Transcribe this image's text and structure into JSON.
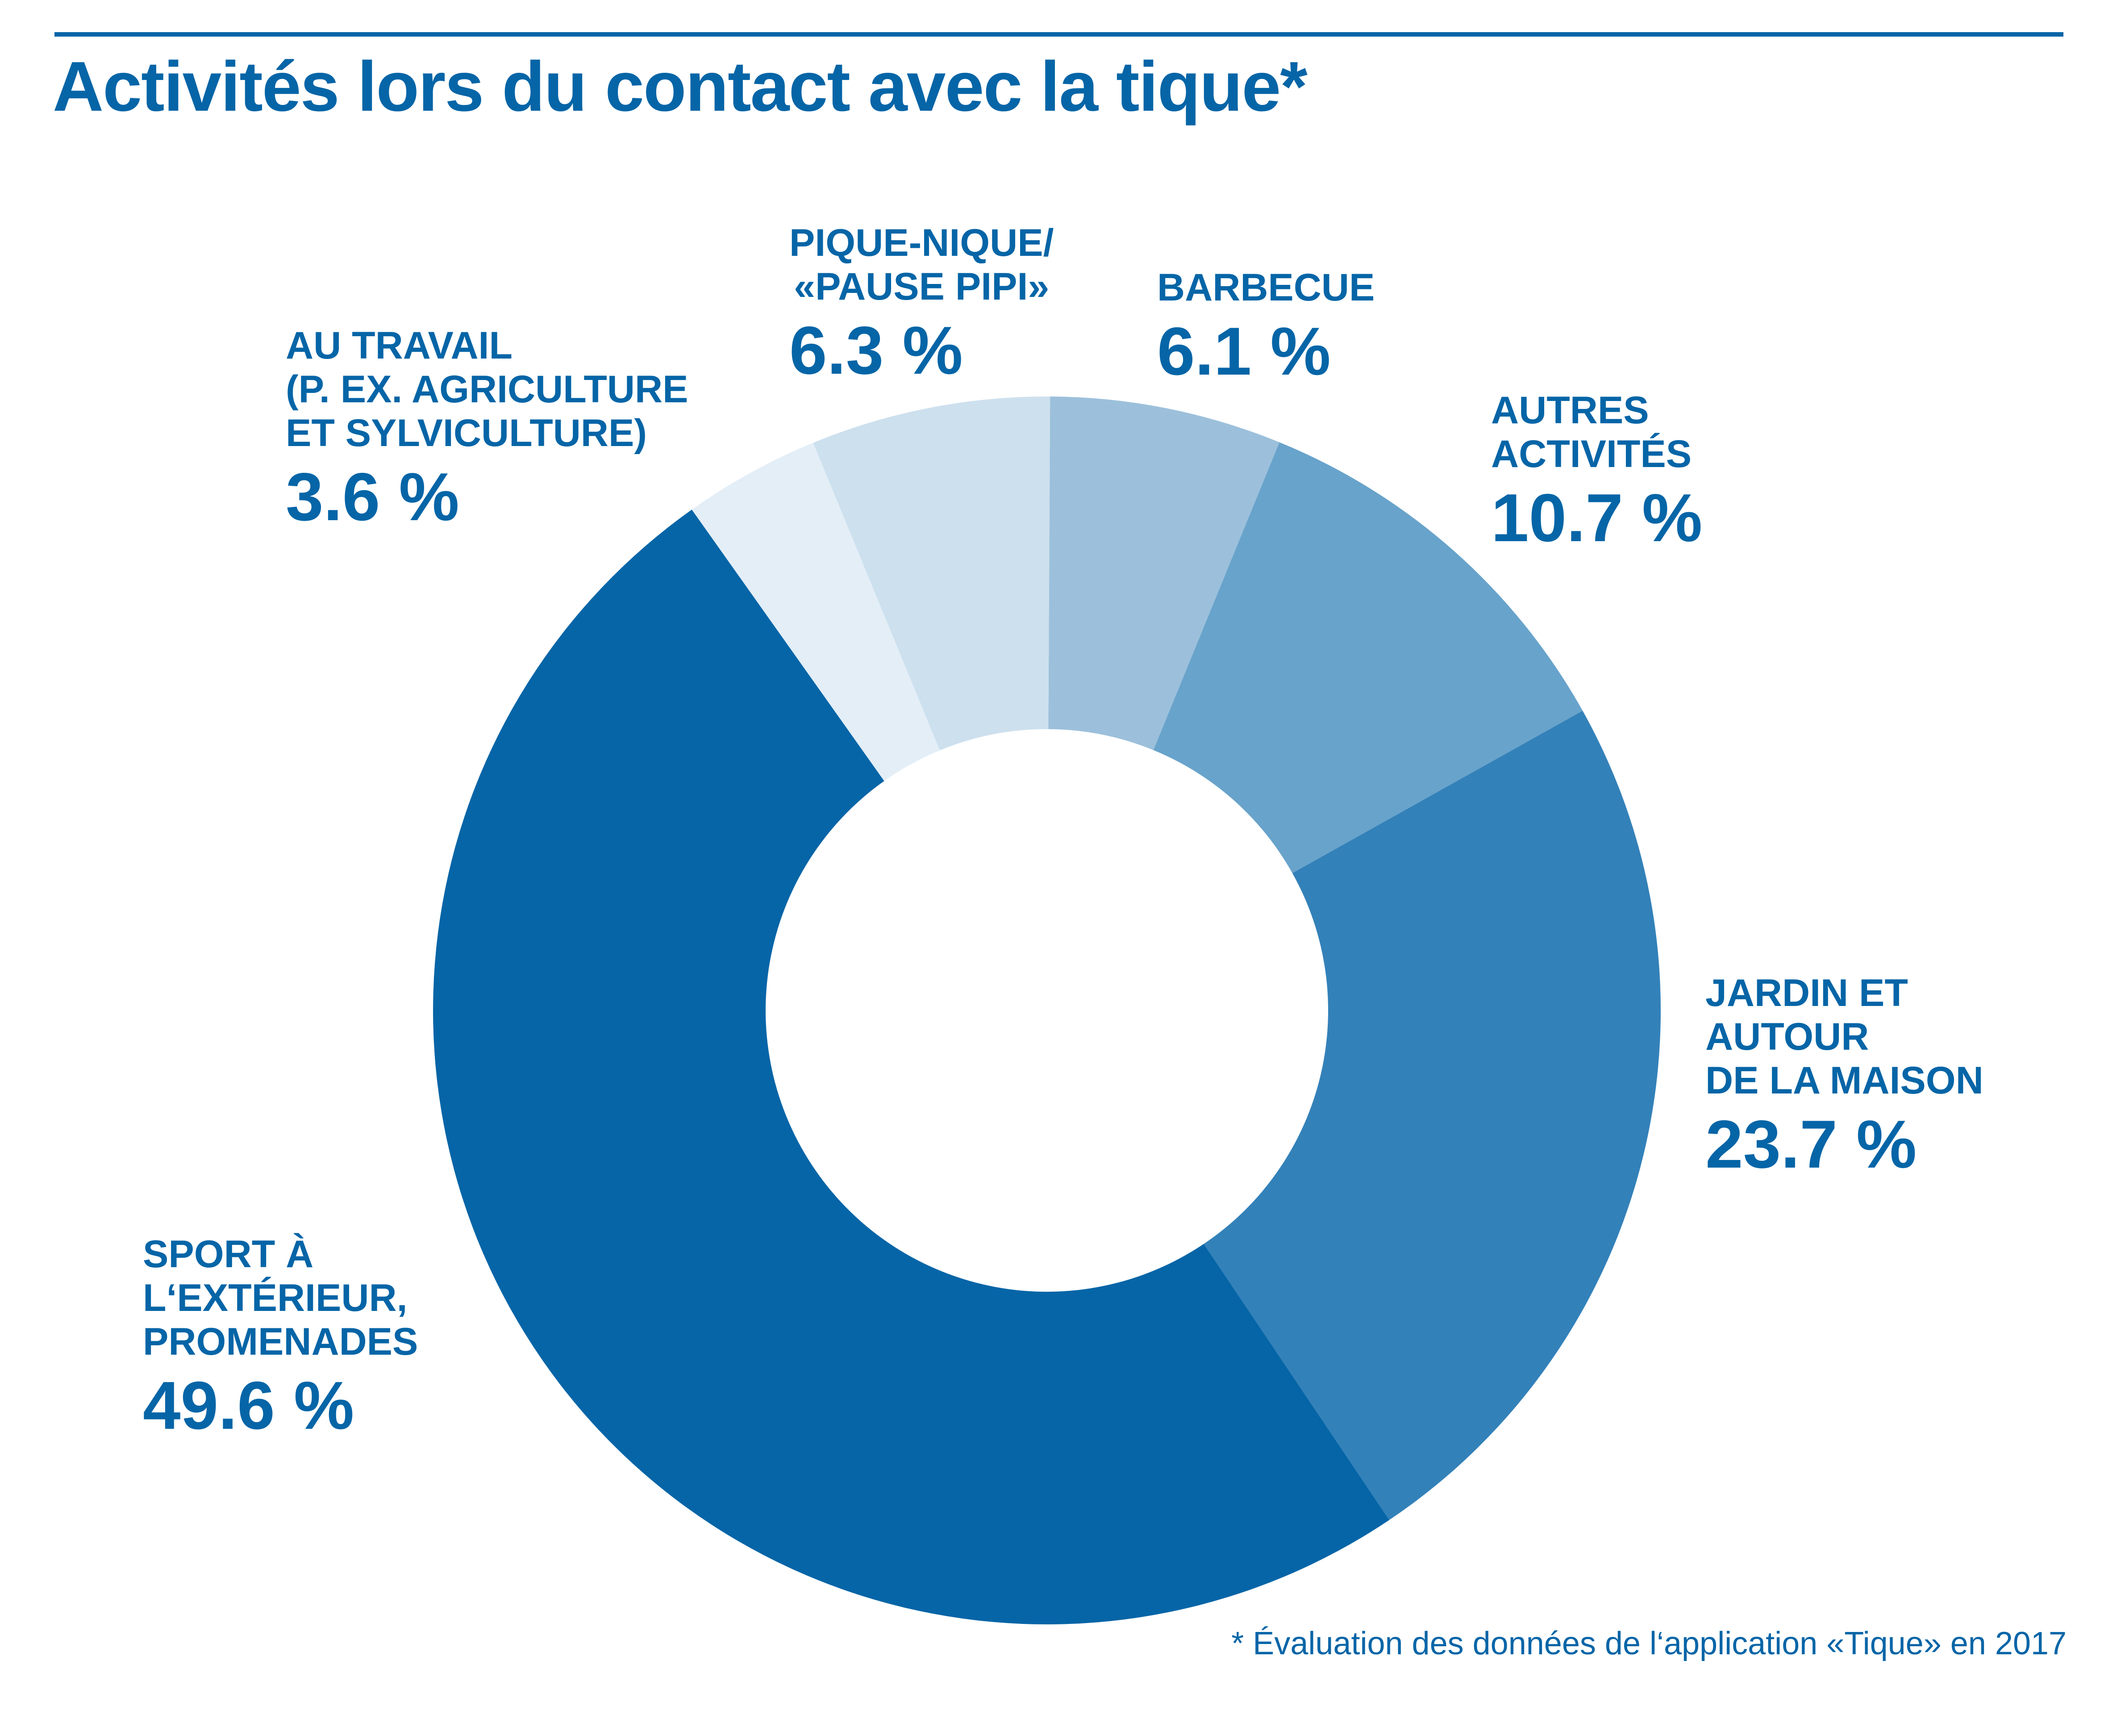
{
  "chart_data": {
    "type": "pie",
    "title": "Activités lors du contact avec la tique*",
    "donut": true,
    "slices": [
      {
        "name": "AU TRAVAIL\n(P. EX. AGRICULTURE\nET SYLVICULTURE)",
        "label": "3.6 %",
        "value": 3.6,
        "color": "#e3eef7"
      },
      {
        "name": "PIQUE-NIQUE/\n«PAUSE PIPI»",
        "label": "6.3 %",
        "value": 6.3,
        "color": "#cde0ee"
      },
      {
        "name": "BARBECUE",
        "label": "6.1 %",
        "value": 6.1,
        "color": "#9cc0db"
      },
      {
        "name": "AUTRES\nACTIVITÉS",
        "label": "10.7 %",
        "value": 10.7,
        "color": "#68a3cb"
      },
      {
        "name": "JARDIN ET\nAUTOUR\nDE LA MAISON",
        "label": "23.7 %",
        "value": 23.7,
        "color": "#3381b9"
      },
      {
        "name": "SPORT À\nL‘EXTÉRIEUR,\nPROMENADES",
        "label": "49.6 %",
        "value": 49.6,
        "color": "#0565a7"
      }
    ],
    "footnote": "* Évaluation des données de l‘application «Tique» en 2017"
  }
}
